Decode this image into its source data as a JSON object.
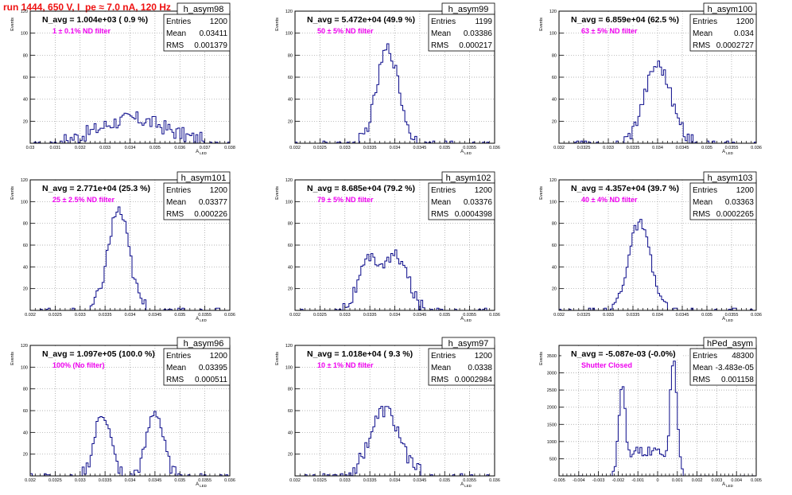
{
  "header": {
    "run_title": "run 1444,   650 V, I_pe ≈ 7.0 nA, 120 Hz"
  },
  "colors": {
    "background": "#ffffff",
    "histogram": "#0a0a8a",
    "filter_label": "#ee00ee",
    "title": "#ee1111",
    "grid": "#9a9a9a"
  },
  "chart_data": [
    {
      "type": "histogram",
      "name": "h_asym98",
      "ylabel": "Events",
      "xlabel": "A_LED",
      "xlim": [
        0.03,
        0.038
      ],
      "ylim": [
        0,
        120
      ],
      "xticks": [
        "0.03",
        "0.031",
        "0.032",
        "0.033",
        "0.034",
        "0.035",
        "0.036",
        "0.037",
        "0.038"
      ],
      "yticks": [
        "20",
        "40",
        "60",
        "80",
        "100",
        "120"
      ],
      "navg": "N_avg = 1.004e+03 ( 0.9 %)",
      "filter": "1 ± 0.1% ND filter",
      "stats": [
        [
          "Entries",
          "1200"
        ],
        [
          "Mean",
          "0.03411"
        ],
        [
          "RMS",
          "0.001379"
        ]
      ],
      "shape": {
        "peaks": [
          {
            "c": 0.03411,
            "s": 0.00138,
            "a": 22
          }
        ],
        "noise": 7
      }
    },
    {
      "type": "histogram",
      "name": "h_asym99",
      "ylabel": "Events",
      "xlabel": "A_LED",
      "xlim": [
        0.032,
        0.036
      ],
      "ylim": [
        0,
        120
      ],
      "xticks": [
        "0.032",
        "0.0325",
        "0.033",
        "0.0335",
        "0.034",
        "0.0345",
        "0.035",
        "0.0355",
        "0.036"
      ],
      "yticks": [
        "20",
        "40",
        "60",
        "80",
        "100",
        "120"
      ],
      "navg": "N_avg = 5.472e+04 (49.9 %)",
      "filter": "50 ± 5% ND filter",
      "stats": [
        [
          "Entries",
          "1199"
        ],
        [
          "Mean",
          "0.03386"
        ],
        [
          "RMS",
          "0.000217"
        ]
      ],
      "shape": {
        "peaks": [
          {
            "c": 0.03386,
            "s": 0.00022,
            "a": 86
          }
        ],
        "noise": 6
      }
    },
    {
      "type": "histogram",
      "name": "h_asym100",
      "ylabel": "Events",
      "xlabel": "A_LED",
      "xlim": [
        0.032,
        0.036
      ],
      "ylim": [
        0,
        120
      ],
      "xticks": [
        "0.032",
        "0.0325",
        "0.033",
        "0.0335",
        "0.034",
        "0.0345",
        "0.035",
        "0.0355",
        "0.036"
      ],
      "yticks": [
        "20",
        "40",
        "60",
        "80",
        "100",
        "120"
      ],
      "navg": "N_avg = 6.859e+04 (62.5 %)",
      "filter": "63 ± 5% ND filter",
      "stats": [
        [
          "Entries",
          "1200"
        ],
        [
          "Mean",
          "0.034"
        ],
        [
          "RMS",
          "0.0002727"
        ]
      ],
      "shape": {
        "peaks": [
          {
            "c": 0.034,
            "s": 0.00027,
            "a": 72
          }
        ],
        "noise": 6
      }
    },
    {
      "type": "histogram",
      "name": "h_asym101",
      "ylabel": "Events",
      "xlabel": "A_LED",
      "xlim": [
        0.032,
        0.036
      ],
      "ylim": [
        0,
        120
      ],
      "xticks": [
        "0.032",
        "0.0325",
        "0.033",
        "0.0335",
        "0.034",
        "0.0345",
        "0.035",
        "0.0355",
        "0.036"
      ],
      "yticks": [
        "20",
        "40",
        "60",
        "80",
        "100",
        "120"
      ],
      "navg": "N_avg = 2.771e+04 (25.3 %)",
      "filter": "25 ± 2.5% ND filter",
      "stats": [
        [
          "Entries",
          "1200"
        ],
        [
          "Mean",
          "0.03377"
        ],
        [
          "RMS",
          "0.000226"
        ]
      ],
      "shape": {
        "peaks": [
          {
            "c": 0.03377,
            "s": 0.00021,
            "a": 92
          }
        ],
        "noise": 7
      }
    },
    {
      "type": "histogram",
      "name": "h_asym102",
      "ylabel": "Events",
      "xlabel": "A_LED",
      "xlim": [
        0.032,
        0.036
      ],
      "ylim": [
        0,
        120
      ],
      "xticks": [
        "0.032",
        "0.0325",
        "0.033",
        "0.0335",
        "0.034",
        "0.0345",
        "0.035",
        "0.0355",
        "0.036"
      ],
      "yticks": [
        "20",
        "40",
        "60",
        "80",
        "100",
        "120"
      ],
      "navg": "N_avg = 8.685e+04 (79.2 %)",
      "filter": "79 ± 5% ND filter",
      "stats": [
        [
          "Entries",
          "1200"
        ],
        [
          "Mean",
          "0.03376"
        ],
        [
          "RMS",
          "0.0004398"
        ]
      ],
      "shape": {
        "peaks": [
          {
            "c": 0.0335,
            "s": 0.00022,
            "a": 45
          },
          {
            "c": 0.03405,
            "s": 0.00022,
            "a": 48
          }
        ],
        "noise": 6
      }
    },
    {
      "type": "histogram",
      "name": "h_asym103",
      "ylabel": "Events",
      "xlabel": "A_LED",
      "xlim": [
        0.032,
        0.036
      ],
      "ylim": [
        0,
        120
      ],
      "xticks": [
        "0.032",
        "0.0325",
        "0.033",
        "0.0335",
        "0.034",
        "0.0345",
        "0.035",
        "0.0355",
        "0.036"
      ],
      "yticks": [
        "20",
        "40",
        "60",
        "80",
        "100",
        "120"
      ],
      "navg": "N_avg = 4.357e+04 (39.7 %)",
      "filter": "40 ± 4% ND filter",
      "stats": [
        [
          "Entries",
          "1200"
        ],
        [
          "Mean",
          "0.03363"
        ],
        [
          "RMS",
          "0.0002265"
        ]
      ],
      "shape": {
        "peaks": [
          {
            "c": 0.03363,
            "s": 0.00022,
            "a": 80
          }
        ],
        "noise": 5
      }
    },
    {
      "type": "histogram",
      "name": "h_asym96",
      "ylabel": "Events",
      "xlabel": "A_LED",
      "xlim": [
        0.032,
        0.036
      ],
      "ylim": [
        0,
        120
      ],
      "xticks": [
        "0.032",
        "0.0325",
        "0.033",
        "0.0335",
        "0.034",
        "0.0345",
        "0.035",
        "0.0355",
        "0.036"
      ],
      "yticks": [
        "20",
        "40",
        "60",
        "80",
        "100",
        "120"
      ],
      "navg": "N_avg = 1.097e+05 (100.0 %)",
      "filter": "100% (No filter)",
      "stats": [
        [
          "Entries",
          "1200"
        ],
        [
          "Mean",
          "0.03395"
        ],
        [
          "RMS",
          "0.000511"
        ]
      ],
      "shape": {
        "peaks": [
          {
            "c": 0.03345,
            "s": 0.00016,
            "a": 58
          },
          {
            "c": 0.0345,
            "s": 0.00016,
            "a": 60
          }
        ],
        "noise": 6
      }
    },
    {
      "type": "histogram",
      "name": "h_asym97",
      "ylabel": "Events",
      "xlabel": "A_LED",
      "xlim": [
        0.032,
        0.036
      ],
      "ylim": [
        0,
        120
      ],
      "xticks": [
        "0.032",
        "0.0325",
        "0.033",
        "0.0335",
        "0.034",
        "0.0345",
        "0.035",
        "0.0355",
        "0.036"
      ],
      "yticks": [
        "20",
        "40",
        "60",
        "80",
        "100",
        "120"
      ],
      "navg": "N_avg = 1.018e+04 ( 9.3 %)",
      "filter": "10 ± 1% ND filter",
      "stats": [
        [
          "Entries",
          "1200"
        ],
        [
          "Mean",
          "0.0338"
        ],
        [
          "RMS",
          "0.0002984"
        ]
      ],
      "shape": {
        "peaks": [
          {
            "c": 0.0338,
            "s": 0.0003,
            "a": 60
          }
        ],
        "noise": 7
      }
    },
    {
      "type": "histogram",
      "name": "hPed_asym",
      "ylabel": "Events",
      "xlabel": "A_LED",
      "xlim": [
        -0.005,
        0.005
      ],
      "ylim": [
        0,
        3800
      ],
      "xticks": [
        "-0.005",
        "-0.004",
        "-0.003",
        "-0.002",
        "-0.001",
        "0",
        "0.001",
        "0.002",
        "0.003",
        "0.004",
        "0.005"
      ],
      "yticks": [
        "500",
        "1000",
        "1500",
        "2000",
        "2500",
        "3000",
        "3500"
      ],
      "navg": "N_avg = -5.087e-03 (-0.0%)",
      "filter": "Shutter Closed",
      "stats": [
        [
          "Entries",
          "48300"
        ],
        [
          "Mean",
          "-3.483e-05"
        ],
        [
          "RMS",
          "0.001158"
        ]
      ],
      "shape": {
        "peaks": [
          {
            "c": -0.0018,
            "s": 0.00018,
            "a": 2600
          },
          {
            "c": 0.0008,
            "s": 0.00018,
            "a": 3400
          }
        ],
        "plateau": {
          "from": -0.0019,
          "to": 0.0009,
          "level": 700
        },
        "noise": 150
      }
    }
  ]
}
